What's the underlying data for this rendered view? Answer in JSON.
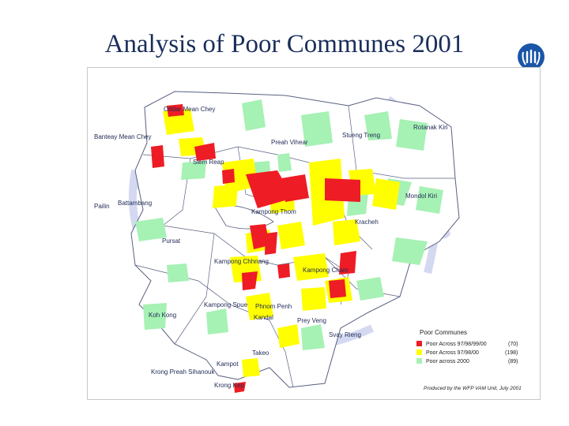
{
  "title": "Analysis of Poor Communes 2001",
  "logo_icon": "wfp-laurel-logo-icon",
  "colors": {
    "poor_97_98_99_00": "#ee1c24",
    "poor_97_98_00": "#ffff00",
    "poor_2000": "#a6f1b4",
    "boundary": "#5a6080",
    "watermark": "#c9d0ee"
  },
  "provinces": {
    "oddar_meanchey": "Oddar Mean Chey",
    "banteay_meanchey": "Banteay Mean Chey",
    "preah_vihear": "Preah Vihear",
    "stueng_treng": "Stueng Treng",
    "ratanak_kiri": "Rotanak Kiri",
    "siem_reap": "Siem Reap",
    "pailin": "Pailin",
    "battambang": "Battambang",
    "kampong_thom": "Kampong Thom",
    "mondol_kiri": "Mondol Kiri",
    "kracheh": "Kracheh",
    "pursat": "Pursat",
    "kampong_chhnang": "Kampong Chhnang",
    "kampong_cham": "Kampong Cham",
    "kampong_speu": "Kampong Spue",
    "phnom_penh": "Phnom Penh",
    "kandal": "Kandal",
    "koh_kong": "Koh Kong",
    "prey_veng": "Prey Veng",
    "svay_rieng": "Svay Rieng",
    "takeo": "Takeo",
    "kampot": "Kampot",
    "krong_preah_sihanouk": "Krong Preah Sihanouk",
    "krong_kep": "Krong Kep"
  },
  "legend": {
    "title": "Poor Communes",
    "items": [
      {
        "label": "Poor Across 97/98/99/00",
        "count": "(70)"
      },
      {
        "label": "Poor Across 97/98/00",
        "count": "(198)"
      },
      {
        "label": "Poor across 2000",
        "count": "(89)"
      }
    ]
  },
  "credit": "Produced by the WFP VAM Unit, July 2001"
}
